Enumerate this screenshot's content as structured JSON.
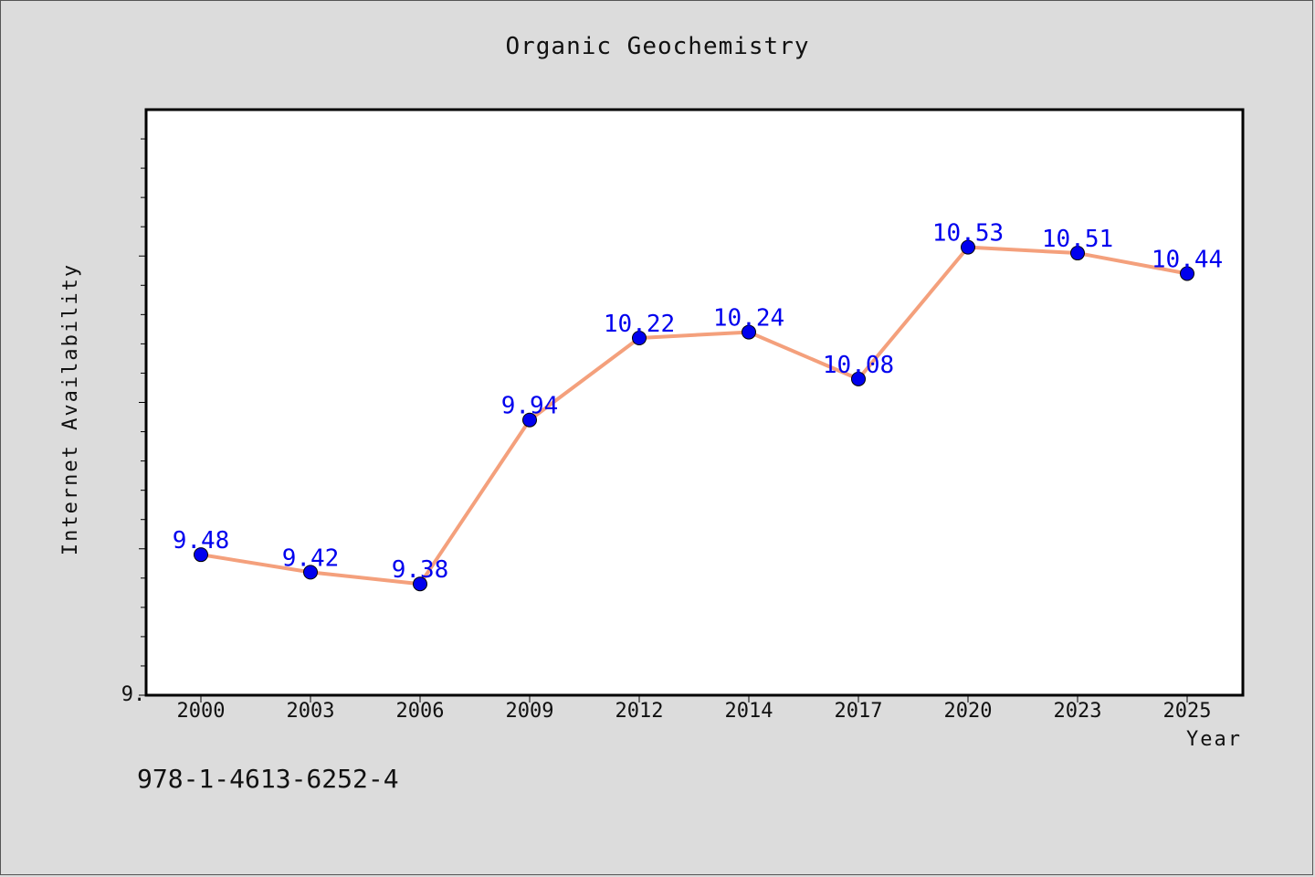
{
  "chart_data": {
    "type": "line",
    "title": "Organic Geochemistry",
    "xlabel": "Year",
    "ylabel": "Internet Availability",
    "categories": [
      "2000",
      "2003",
      "2006",
      "2009",
      "2012",
      "2014",
      "2017",
      "2020",
      "2023",
      "2025"
    ],
    "series": [
      {
        "values": [
          9.48,
          9.42,
          9.38,
          9.94,
          10.22,
          10.24,
          10.08,
          10.53,
          10.51,
          10.44
        ],
        "labels": [
          "9.48",
          "9.42",
          "9.38",
          "9.94",
          "10.22",
          "10.24",
          "10.08",
          "10.53",
          "10.51",
          "10.44"
        ],
        "line_color": "#f4a07c",
        "marker_color": "#0000ee"
      }
    ],
    "y_tick_label": "9.",
    "ylim": [
      9.0,
      11.0
    ],
    "grid": false,
    "legend": "none"
  },
  "annotation": "978-1-4613-6252-4"
}
